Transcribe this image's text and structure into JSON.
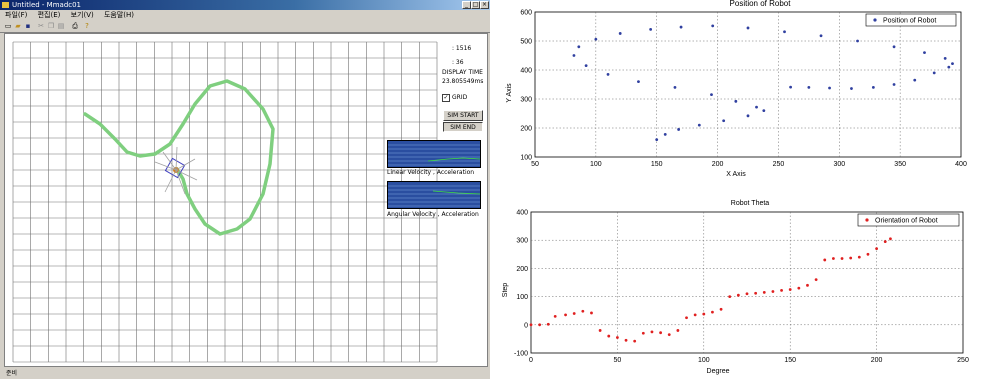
{
  "window": {
    "title": "Untitled - Mmadc01",
    "menu": [
      "파일(F)",
      "편집(E)",
      "보기(V)",
      "도움말(H)"
    ],
    "toolbar_icons": [
      "new-file-icon",
      "open-folder-icon",
      "save-icon",
      "cut-icon",
      "copy-icon",
      "paste-icon",
      "print-icon",
      "help-icon"
    ],
    "status_text": "준비"
  },
  "panel": {
    "value1": ": 1516",
    "value2": ": 36",
    "display_time_label": "DISPLAY TIME",
    "display_time_value": "23.805549ms",
    "grid_label": "GRID",
    "grid_checked": true,
    "sim_start": "SIM START",
    "sim_end": "SIM END",
    "linear_caption": "Linear Velocity , Acceleration",
    "angular_caption": "Angular Velocity , Acceleration"
  },
  "colors": {
    "path": "#7fcf7f",
    "position_marker": "#3040a0",
    "orientation_marker": "#e02020",
    "mini_plot_bg": "#2a4ea0"
  },
  "chart_data": [
    {
      "type": "scatter",
      "title": "Position of Robot",
      "xlabel": "X Axis",
      "ylabel": "Y Axis",
      "xlim": [
        50,
        400
      ],
      "ylim": [
        100,
        600
      ],
      "xticks": [
        50,
        100,
        150,
        200,
        250,
        300,
        350,
        400
      ],
      "yticks": [
        100,
        200,
        300,
        400,
        500,
        600
      ],
      "legend": "top-right",
      "grid": true,
      "series": [
        {
          "name": "Position of Robot",
          "x": [
            260,
            275,
            292,
            310,
            328,
            345,
            362,
            378,
            390,
            393,
            387,
            370,
            345,
            315,
            285,
            255,
            225,
            196,
            170,
            145,
            120,
            100,
            86,
            82,
            92,
            110,
            135,
            165,
            195,
            215,
            232,
            238,
            225,
            205,
            185,
            168,
            157,
            150
          ],
          "y": [
            341,
            340,
            338,
            336,
            340,
            350,
            365,
            390,
            410,
            422,
            440,
            460,
            480,
            500,
            518,
            532,
            545,
            552,
            548,
            540,
            526,
            506,
            480,
            450,
            415,
            385,
            360,
            340,
            315,
            292,
            272,
            260,
            242,
            225,
            210,
            195,
            178,
            160
          ]
        }
      ]
    },
    {
      "type": "scatter",
      "title": "Robot Theta",
      "xlabel": "Degree",
      "ylabel": "Step",
      "xlim": [
        0,
        250
      ],
      "ylim": [
        -100,
        400
      ],
      "xticks": [
        0,
        50,
        100,
        150,
        200,
        250
      ],
      "yticks": [
        -100,
        0,
        100,
        200,
        300,
        400
      ],
      "legend": "top-right",
      "grid": true,
      "series": [
        {
          "name": "Orientation of Robot",
          "x": [
            0,
            5,
            10,
            14,
            20,
            25,
            30,
            35,
            40,
            45,
            50,
            55,
            60,
            65,
            70,
            75,
            80,
            85,
            90,
            95,
            100,
            105,
            110,
            115,
            120,
            125,
            130,
            135,
            140,
            145,
            150,
            155,
            160,
            165,
            170,
            175,
            180,
            185,
            190,
            195,
            200,
            205,
            208
          ],
          "y": [
            0,
            0,
            2,
            30,
            35,
            40,
            48,
            42,
            -20,
            -40,
            -45,
            -55,
            -58,
            -30,
            -25,
            -28,
            -35,
            -20,
            25,
            35,
            38,
            45,
            55,
            100,
            105,
            110,
            112,
            115,
            118,
            122,
            125,
            130,
            140,
            160,
            230,
            235,
            235,
            237,
            240,
            250,
            270,
            295,
            305
          ]
        }
      ]
    }
  ]
}
